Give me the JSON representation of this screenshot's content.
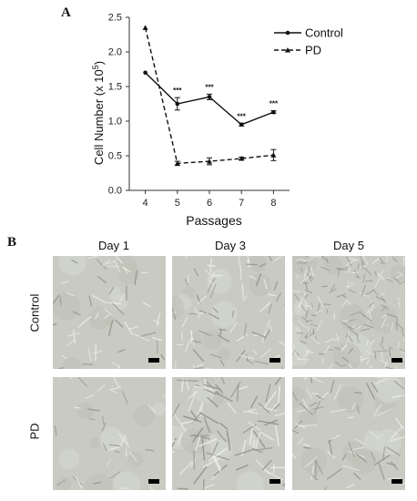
{
  "panels": {
    "a_label": "A",
    "b_label": "B"
  },
  "chart_data": {
    "type": "line",
    "xlabel": "Passages",
    "ylabel": "Cell Number  (x 10",
    "ylabel_exp": "5",
    "ylabel_close": ")",
    "x": [
      4,
      5,
      6,
      7,
      8
    ],
    "ylim": [
      0.0,
      2.5
    ],
    "yticks": [
      "0.0",
      "0.5",
      "1.0",
      "1.5",
      "2.0",
      "2.5"
    ],
    "legend_placement": "top-right",
    "grid": false,
    "series": [
      {
        "name": "Control",
        "style": "solid",
        "values": [
          1.7,
          1.25,
          1.35,
          0.95,
          1.13
        ],
        "errors": [
          0.0,
          0.09,
          0.04,
          0.02,
          0.02
        ],
        "color": "#111111"
      },
      {
        "name": "PD",
        "style": "dashed",
        "values": [
          2.35,
          0.39,
          0.42,
          0.46,
          0.51
        ],
        "errors": [
          0.0,
          0.03,
          0.05,
          0.02,
          0.08
        ],
        "color": "#111111"
      }
    ],
    "significance": [
      {
        "x": 5,
        "label": "***"
      },
      {
        "x": 6,
        "label": "***"
      },
      {
        "x": 7,
        "label": "***"
      },
      {
        "x": 8,
        "label": "***"
      }
    ]
  },
  "micrographs": {
    "columns": [
      "Day 1",
      "Day 3",
      "Day 5"
    ],
    "rows": [
      "Control",
      "PD"
    ],
    "background": "#c9cbc2"
  }
}
